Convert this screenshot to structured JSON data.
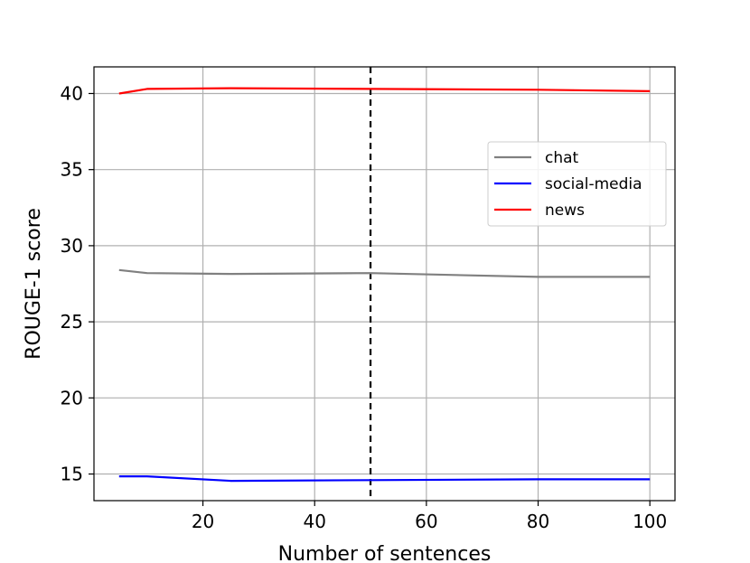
{
  "chart_data": {
    "type": "line",
    "xlabel": "Number of sentences",
    "ylabel": "ROUGE-1 score",
    "xlim": [
      0.5,
      104.5
    ],
    "ylim": [
      13.25,
      41.75
    ],
    "xticks": [
      20,
      40,
      60,
      80,
      100
    ],
    "yticks": [
      15,
      20,
      25,
      30,
      35,
      40
    ],
    "grid": true,
    "legend_position": "upper right",
    "reference_line": {
      "x": 50,
      "style": "dashed",
      "color": "#000000"
    },
    "x": [
      5,
      10,
      25,
      50,
      80,
      100
    ],
    "series": [
      {
        "name": "chat",
        "color": "#808080",
        "values": [
          28.4,
          28.2,
          28.15,
          28.2,
          27.95,
          27.95
        ]
      },
      {
        "name": "social-media",
        "color": "#0000ff",
        "values": [
          14.85,
          14.85,
          14.55,
          14.6,
          14.65,
          14.65
        ]
      },
      {
        "name": "news",
        "color": "#ff0000",
        "values": [
          40.0,
          40.3,
          40.35,
          40.3,
          40.25,
          40.15
        ]
      }
    ]
  }
}
